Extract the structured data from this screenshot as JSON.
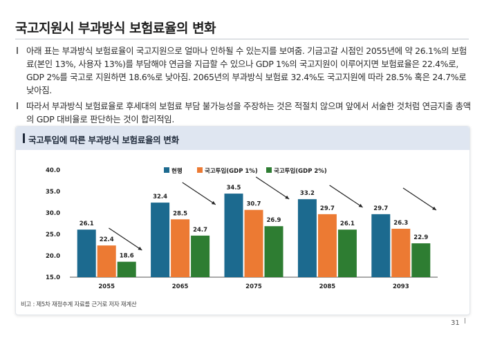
{
  "page": {
    "title": "국고지원시 부과방식 보험료율의 변화",
    "bullets": [
      "아래 표는 부과방식 보험료율이 국고지원으로 얼마나 인하될 수 있는지를 보여줌. 기금고갈 시점인 2055년에 약 26.1%의 보험료(본인 13%, 사용자 13%)를 부담해야  연금을 지급할 수 있으나 GDP 1%의 국고지원이 이루어지면 보험료율은 22.4%로, GDP 2%를 국고로 지원하면 18.6%로 낮아짐. 2065년의 부과방식 보험료 32.4%도 국고지원에 따라 28.5% 혹은 24.7%로 낮아짐.",
      "따라서 부과방식 보험료율로 후세대의 보험료 부담 불가능성을 주장하는 것은 적절치 않으며 앞에서 서술한 것처럼 연금지출 총액의 GDP 대비율로 판단하는 것이 합리적임."
    ],
    "chart_header": "국고투입에 따른 부과방식 보험료율의 변화",
    "note": "비고 : 제5차 재정추계 자료를 근거로  저자 재계산",
    "page_number": "31"
  },
  "colors": {
    "series": [
      "#1c6a8f",
      "#ec7a33",
      "#2e7d32"
    ],
    "header_bg": "#dfe6f1",
    "grid": "#000000"
  },
  "chart_data": {
    "type": "bar",
    "title": "",
    "categories": [
      "2055",
      "2065",
      "2075",
      "2085",
      "2093"
    ],
    "series": [
      {
        "name": "현행",
        "values": [
          26.1,
          32.4,
          34.5,
          33.2,
          29.7
        ]
      },
      {
        "name": "국고투입(GDP 1%)",
        "values": [
          22.4,
          28.5,
          30.7,
          29.7,
          26.3
        ]
      },
      {
        "name": "국고투입(GDP 2%)",
        "values": [
          18.6,
          24.7,
          26.9,
          26.1,
          22.9
        ]
      }
    ],
    "y_ticks": [
      "40.0",
      "35.0",
      "30.0",
      "25.0",
      "20.0",
      "15.0"
    ],
    "ylim": [
      15,
      40
    ],
    "legend_position": "top-center",
    "grid": false,
    "annotations": "downward arrows above each category group"
  }
}
